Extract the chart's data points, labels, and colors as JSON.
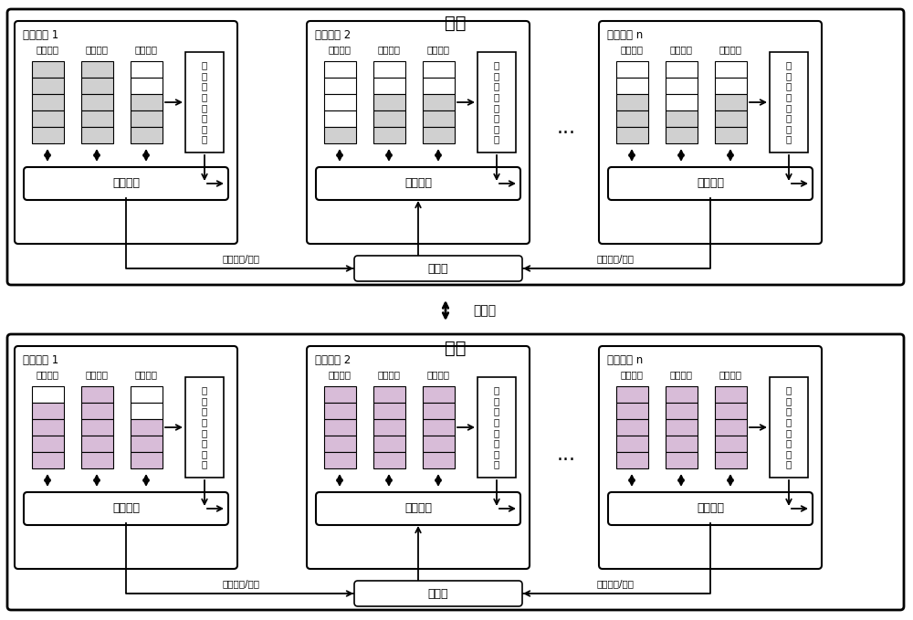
{
  "title_cluster": "丛集",
  "label_after": "迁移后",
  "cores": [
    "处理器核 1",
    "处理器核 2",
    "处理器核 n"
  ],
  "thread_labels": [
    "迁入线程",
    "本地线程",
    "其它线程"
  ],
  "collector_label": "线\n程\n栈\n信\n息\n收\n集\n器",
  "migration_label": "线程迁移",
  "router_label": "路由器",
  "migrate_req_label": "迁移请求/应答",
  "ellipsis": "...",
  "bg_color": "#ffffff",
  "fill_gray": "#d0d0d0",
  "fill_pink": "#d8bcd8",
  "fill_white": "#ffffff",
  "top_stacks": [
    [
      [
        1,
        1,
        1,
        1,
        1
      ],
      [
        1,
        1,
        1,
        1,
        1
      ],
      [
        0,
        0,
        1,
        1,
        1
      ]
    ],
    [
      [
        0,
        0,
        0,
        0,
        1
      ],
      [
        0,
        0,
        1,
        1,
        1
      ],
      [
        0,
        0,
        1,
        1,
        1
      ]
    ],
    [
      [
        0,
        0,
        1,
        1,
        1
      ],
      [
        0,
        0,
        0,
        1,
        1
      ],
      [
        0,
        0,
        1,
        1,
        1
      ]
    ]
  ],
  "bot_stacks": [
    [
      [
        0,
        2,
        2,
        2,
        2
      ],
      [
        2,
        2,
        2,
        2,
        2
      ],
      [
        0,
        0,
        2,
        2,
        2
      ]
    ],
    [
      [
        2,
        2,
        2,
        2,
        2
      ],
      [
        2,
        2,
        2,
        2,
        2
      ],
      [
        2,
        2,
        2,
        2,
        2
      ]
    ],
    [
      [
        2,
        2,
        2,
        2,
        2
      ],
      [
        2,
        2,
        2,
        2,
        2
      ],
      [
        2,
        2,
        2,
        2,
        2
      ]
    ]
  ]
}
